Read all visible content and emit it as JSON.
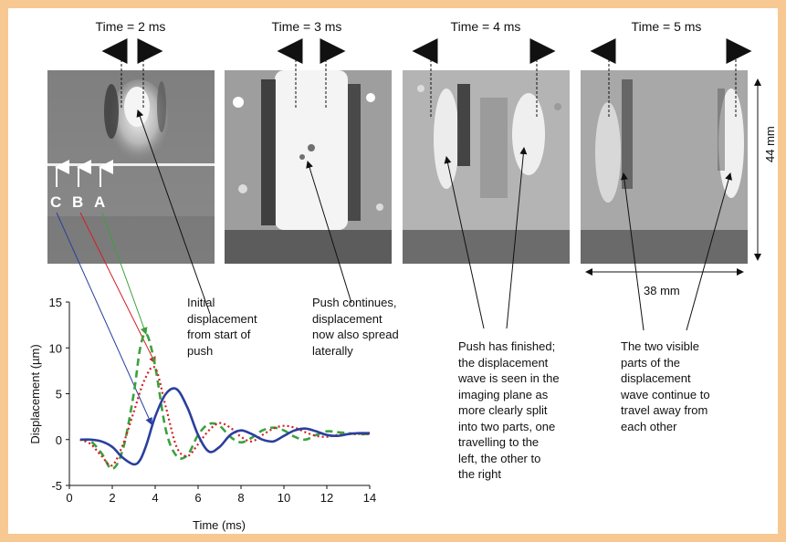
{
  "panels": [
    {
      "title": "Time = 2 ms"
    },
    {
      "title": "Time = 3 ms"
    },
    {
      "title": "Time = 4 ms"
    },
    {
      "title": "Time = 5 ms"
    }
  ],
  "markers": [
    "C",
    "B",
    "A"
  ],
  "scale": {
    "height": "44 mm",
    "width": "38 mm"
  },
  "annotations": {
    "initial": [
      "Initial",
      "displacement",
      "from start of",
      "push"
    ],
    "continues": [
      "Push continues,",
      "displacement",
      "now also spread",
      "laterally"
    ],
    "finished": [
      "Push has finished;",
      "the displacement",
      "wave is seen in the",
      "imaging plane as",
      "more clearly split",
      "into two parts, one",
      "travelling to the",
      "left, the other to",
      "the right"
    ],
    "travel": [
      "The two visible",
      "parts of the",
      "displacement",
      "wave continue to",
      "travel away from",
      "each other"
    ]
  },
  "colors": {
    "frame": "#f8c893",
    "blue": "#2a3f9e",
    "red": "#d41d25",
    "green": "#3aa23c"
  },
  "chart_data": {
    "type": "line",
    "xlabel": "Time (ms)",
    "ylabel": "Displacement (µm)",
    "xlim": [
      0,
      14
    ],
    "ylim": [
      -5,
      15
    ],
    "xticks": [
      "0",
      "2",
      "4",
      "6",
      "8",
      "10",
      "12",
      "14"
    ],
    "yticks": [
      "-5",
      "0",
      "5",
      "10",
      "15"
    ],
    "series": [
      {
        "name": "A",
        "style": "dashed",
        "color": "#3aa23c",
        "x": [
          0.5,
          1.0,
          1.5,
          2.0,
          2.5,
          3.0,
          3.3,
          3.6,
          4.0,
          4.5,
          5.0,
          5.5,
          6.0,
          6.5,
          7.0,
          7.5,
          8.0,
          8.5,
          9.0,
          9.5,
          10.0,
          10.5,
          11.0,
          11.5,
          12.0,
          12.5,
          13.0,
          13.5,
          14.0
        ],
        "y": [
          0.0,
          -0.2,
          -1.5,
          -3.2,
          -1.0,
          5.0,
          10.0,
          11.5,
          8.0,
          1.0,
          -1.8,
          -1.7,
          0.5,
          1.7,
          1.5,
          0.3,
          -0.3,
          0.2,
          1.0,
          1.3,
          1.0,
          0.3,
          0.0,
          0.5,
          0.9,
          0.8,
          0.7,
          0.6,
          0.6
        ]
      },
      {
        "name": "B",
        "style": "dotted",
        "color": "#d41d25",
        "x": [
          0.5,
          1.0,
          1.5,
          2.0,
          2.5,
          3.0,
          3.5,
          4.0,
          4.5,
          5.0,
          5.5,
          6.0,
          6.5,
          7.0,
          7.5,
          8.0,
          8.5,
          9.0,
          9.5,
          10.0,
          10.5,
          11.0,
          11.5,
          12.0,
          12.5,
          13.0,
          13.5,
          14.0
        ],
        "y": [
          0.0,
          -0.5,
          -1.8,
          -2.8,
          -0.5,
          3.0,
          6.5,
          7.8,
          3.5,
          -0.8,
          -1.8,
          -0.5,
          1.0,
          1.8,
          1.3,
          0.3,
          -0.2,
          0.5,
          1.2,
          1.5,
          1.3,
          0.8,
          0.4,
          0.3,
          0.5,
          0.6,
          0.6,
          0.6
        ]
      },
      {
        "name": "C",
        "style": "solid",
        "color": "#2a3f9e",
        "x": [
          0.5,
          1.0,
          1.5,
          2.0,
          2.5,
          3.0,
          3.3,
          3.6,
          4.0,
          4.5,
          5.0,
          5.5,
          6.0,
          6.5,
          7.0,
          7.5,
          8.0,
          8.5,
          9.0,
          9.5,
          10.0,
          10.5,
          11.0,
          11.5,
          12.0,
          12.5,
          13.0,
          13.5,
          14.0
        ],
        "y": [
          0.0,
          0.0,
          -0.2,
          -0.8,
          -2.0,
          -2.7,
          -2.2,
          -0.5,
          2.5,
          5.0,
          5.5,
          3.5,
          0.5,
          -1.3,
          -0.8,
          0.5,
          1.0,
          0.6,
          0.0,
          -0.2,
          0.4,
          1.0,
          1.2,
          0.9,
          0.5,
          0.4,
          0.6,
          0.7,
          0.7
        ]
      }
    ]
  }
}
